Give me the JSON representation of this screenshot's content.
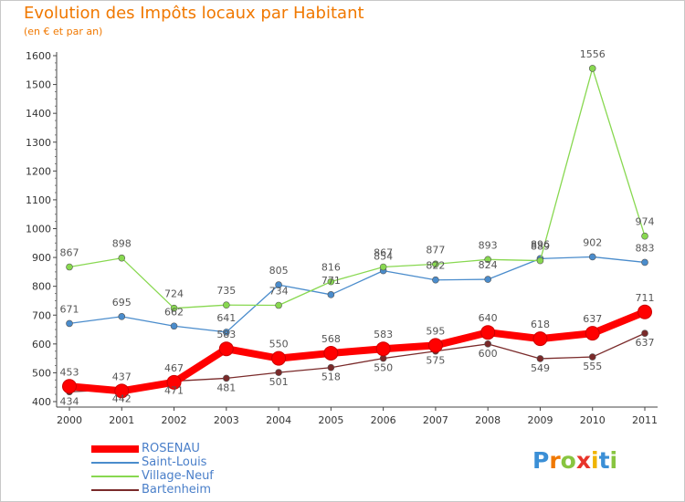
{
  "chart_data": {
    "type": "line",
    "title": "Evolution des Impôts locaux par Habitant",
    "subtitle": "(en € et par an)",
    "x": [
      "2000",
      "2001",
      "2002",
      "2003",
      "2004",
      "2005",
      "2006",
      "2007",
      "2008",
      "2009",
      "2010",
      "2011"
    ],
    "ylim": [
      400,
      1600
    ],
    "yticks": [
      400,
      500,
      600,
      700,
      800,
      900,
      1000,
      1100,
      1200,
      1300,
      1400,
      1500,
      1600
    ],
    "grid": false,
    "legend_position": "bottom-left",
    "series": [
      {
        "name": "ROSENAU",
        "color": "#ff0000",
        "values": [
          453,
          437,
          467,
          583,
          550,
          568,
          583,
          595,
          640,
          618,
          637,
          711
        ]
      },
      {
        "name": "Saint-Louis",
        "color": "#4a8ccc",
        "values": [
          671,
          695,
          662,
          641,
          805,
          771,
          854,
          822,
          824,
          896,
          902,
          883
        ]
      },
      {
        "name": "Village-Neuf",
        "color": "#88d850",
        "values": [
          867,
          898,
          724,
          735,
          734,
          816,
          867,
          877,
          893,
          889,
          1556,
          974
        ]
      },
      {
        "name": "Bartenheim",
        "color": "#7a2a2a",
        "values": [
          434,
          442,
          471,
          481,
          501,
          518,
          550,
          575,
          600,
          549,
          555,
          637
        ]
      }
    ]
  },
  "logo": {
    "letters": [
      "P",
      "r",
      "o",
      "x",
      "i",
      "t",
      "i"
    ],
    "colors": [
      "#3b8fd6",
      "#f07800",
      "#88c540",
      "#e8342a",
      "#f0b400",
      "#3b8fd6",
      "#88c540"
    ]
  }
}
